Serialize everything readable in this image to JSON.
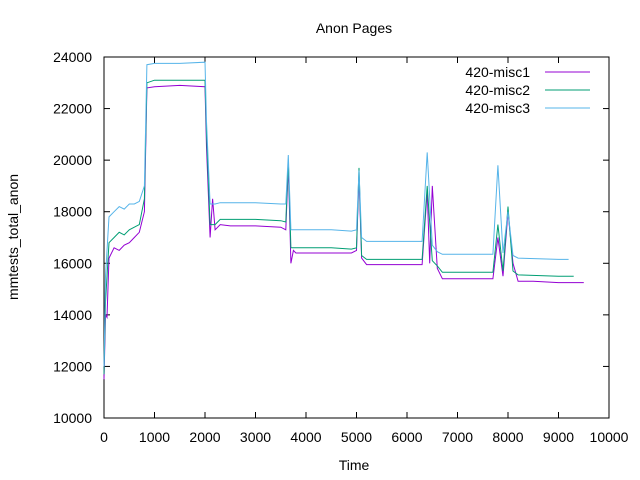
{
  "chart_data": {
    "type": "line",
    "title": "Anon Pages",
    "xlabel": "Time",
    "ylabel": "mmtests_total_anon",
    "xlim": [
      0,
      10000
    ],
    "ylim": [
      10000,
      24000
    ],
    "xticks": [
      0,
      1000,
      2000,
      3000,
      4000,
      5000,
      6000,
      7000,
      8000,
      9000,
      10000
    ],
    "yticks": [
      10000,
      12000,
      14000,
      16000,
      18000,
      20000,
      22000,
      24000
    ],
    "grid": false,
    "legend_position": "top-right",
    "series": [
      {
        "name": "420-misc1",
        "color": "#9400d3",
        "points": [
          [
            0,
            11500
          ],
          [
            30,
            14000
          ],
          [
            60,
            13900
          ],
          [
            100,
            16200
          ],
          [
            200,
            16600
          ],
          [
            300,
            16500
          ],
          [
            400,
            16700
          ],
          [
            500,
            16800
          ],
          [
            600,
            17000
          ],
          [
            700,
            17200
          ],
          [
            800,
            18000
          ],
          [
            850,
            22800
          ],
          [
            1000,
            22850
          ],
          [
            1500,
            22900
          ],
          [
            2000,
            22850
          ],
          [
            2030,
            20500
          ],
          [
            2100,
            17000
          ],
          [
            2150,
            18500
          ],
          [
            2200,
            17300
          ],
          [
            2300,
            17500
          ],
          [
            2500,
            17450
          ],
          [
            3000,
            17450
          ],
          [
            3500,
            17400
          ],
          [
            3600,
            17300
          ],
          [
            3650,
            19800
          ],
          [
            3700,
            16000
          ],
          [
            3750,
            16500
          ],
          [
            3800,
            16400
          ],
          [
            4500,
            16400
          ],
          [
            4900,
            16400
          ],
          [
            5000,
            16500
          ],
          [
            5050,
            19400
          ],
          [
            5100,
            16200
          ],
          [
            5200,
            15950
          ],
          [
            5500,
            15950
          ],
          [
            6000,
            15950
          ],
          [
            6300,
            15950
          ],
          [
            6400,
            18800
          ],
          [
            6450,
            16000
          ],
          [
            6500,
            19000
          ],
          [
            6600,
            15800
          ],
          [
            6700,
            15400
          ],
          [
            7000,
            15400
          ],
          [
            7700,
            15400
          ],
          [
            7800,
            17000
          ],
          [
            7900,
            15500
          ],
          [
            8000,
            18000
          ],
          [
            8100,
            16000
          ],
          [
            8200,
            15300
          ],
          [
            8500,
            15300
          ],
          [
            9000,
            15250
          ],
          [
            9500,
            15250
          ]
        ]
      },
      {
        "name": "420-misc2",
        "color": "#009e73",
        "points": [
          [
            0,
            11700
          ],
          [
            30,
            14500
          ],
          [
            100,
            16800
          ],
          [
            200,
            17000
          ],
          [
            300,
            17200
          ],
          [
            400,
            17100
          ],
          [
            500,
            17300
          ],
          [
            600,
            17400
          ],
          [
            700,
            17500
          ],
          [
            800,
            18500
          ],
          [
            850,
            23000
          ],
          [
            1000,
            23100
          ],
          [
            1500,
            23100
          ],
          [
            2000,
            23100
          ],
          [
            2030,
            21000
          ],
          [
            2100,
            17500
          ],
          [
            2200,
            17500
          ],
          [
            2300,
            17700
          ],
          [
            3000,
            17700
          ],
          [
            3500,
            17650
          ],
          [
            3600,
            17600
          ],
          [
            3650,
            20000
          ],
          [
            3700,
            16600
          ],
          [
            4000,
            16600
          ],
          [
            4500,
            16600
          ],
          [
            4900,
            16550
          ],
          [
            5000,
            16600
          ],
          [
            5050,
            19700
          ],
          [
            5100,
            16300
          ],
          [
            5200,
            16150
          ],
          [
            6000,
            16150
          ],
          [
            6300,
            16150
          ],
          [
            6400,
            19000
          ],
          [
            6500,
            16100
          ],
          [
            6600,
            15900
          ],
          [
            6700,
            15650
          ],
          [
            7500,
            15650
          ],
          [
            7700,
            15650
          ],
          [
            7800,
            17500
          ],
          [
            7900,
            15700
          ],
          [
            8000,
            18200
          ],
          [
            8100,
            15700
          ],
          [
            8200,
            15550
          ],
          [
            9000,
            15500
          ],
          [
            9300,
            15500
          ]
        ]
      },
      {
        "name": "420-misc3",
        "color": "#56b4e9",
        "points": [
          [
            0,
            12000
          ],
          [
            30,
            15500
          ],
          [
            100,
            17800
          ],
          [
            200,
            18000
          ],
          [
            300,
            18200
          ],
          [
            400,
            18100
          ],
          [
            500,
            18300
          ],
          [
            600,
            18300
          ],
          [
            700,
            18400
          ],
          [
            800,
            19000
          ],
          [
            850,
            23700
          ],
          [
            1000,
            23750
          ],
          [
            1500,
            23750
          ],
          [
            2000,
            23800
          ],
          [
            2030,
            21500
          ],
          [
            2100,
            18300
          ],
          [
            2200,
            18300
          ],
          [
            2300,
            18350
          ],
          [
            3000,
            18350
          ],
          [
            3500,
            18300
          ],
          [
            3600,
            18300
          ],
          [
            3650,
            20200
          ],
          [
            3700,
            17300
          ],
          [
            4000,
            17300
          ],
          [
            4500,
            17300
          ],
          [
            4900,
            17250
          ],
          [
            5000,
            17300
          ],
          [
            5050,
            19600
          ],
          [
            5100,
            17000
          ],
          [
            5200,
            16850
          ],
          [
            6000,
            16850
          ],
          [
            6300,
            16850
          ],
          [
            6400,
            20300
          ],
          [
            6500,
            16700
          ],
          [
            6600,
            16450
          ],
          [
            6700,
            16350
          ],
          [
            7500,
            16350
          ],
          [
            7700,
            16350
          ],
          [
            7800,
            19800
          ],
          [
            7900,
            16400
          ],
          [
            8000,
            18000
          ],
          [
            8100,
            16300
          ],
          [
            8200,
            16200
          ],
          [
            9000,
            16150
          ],
          [
            9200,
            16150
          ]
        ]
      }
    ]
  }
}
